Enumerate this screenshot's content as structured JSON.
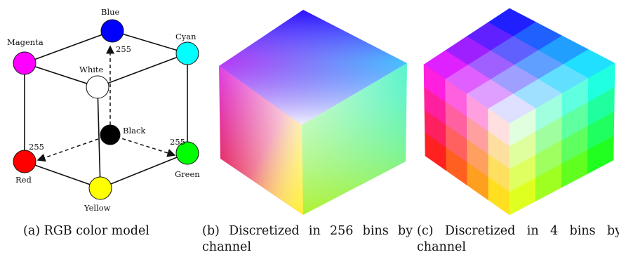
{
  "diagram": {
    "labels": {
      "blue": "Blue",
      "cyan": "Cyan",
      "magenta": "Magenta",
      "white": "White",
      "black": "Black",
      "red": "Red",
      "green": "Green",
      "yellow": "Yellow"
    },
    "axis_max": {
      "blue": "255",
      "red": "255",
      "green": "255"
    },
    "colors": {
      "blue": "#0000ff",
      "cyan": "#00ffff",
      "magenta": "#ff00ff",
      "white": "#ffffff",
      "black": "#000000",
      "red": "#ff0000",
      "green": "#00ff00",
      "yellow": "#ffff00"
    }
  },
  "captions": {
    "a": "(a) RGB color model",
    "b": "(b) Discretized in 256 bins by channel",
    "c": "(c) Discretized in 4 bins by channel"
  },
  "discretized": {
    "bins_b": 256,
    "bins_c": 4
  }
}
